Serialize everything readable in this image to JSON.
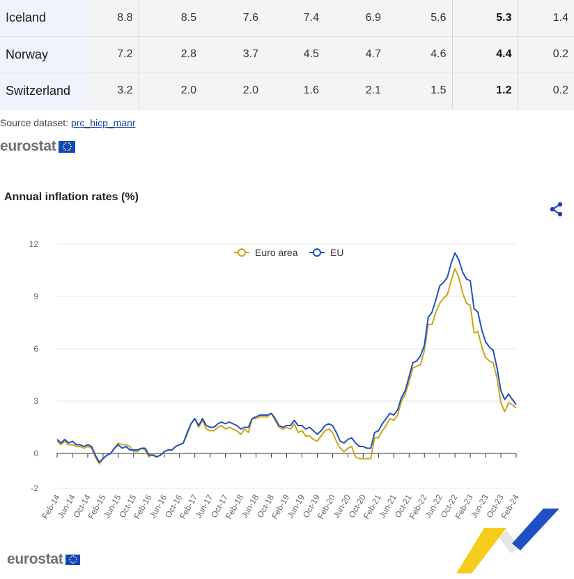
{
  "table": {
    "rows": [
      {
        "country": "Iceland",
        "values": [
          "8.8",
          "8.5",
          "7.6",
          "7.4",
          "6.9",
          "5.6",
          "5.3",
          "1.4"
        ]
      },
      {
        "country": "Norway",
        "values": [
          "7.2",
          "2.8",
          "3.7",
          "4.5",
          "4.7",
          "4.6",
          "4.4",
          "0.2"
        ]
      },
      {
        "country": "Switzerland",
        "values": [
          "3.2",
          "2.0",
          "2.0",
          "1.6",
          "2.1",
          "1.5",
          "1.2",
          "0.2"
        ]
      }
    ]
  },
  "source": {
    "label": "Source dataset:",
    "link_text": "prc_hicp_manr"
  },
  "logo_text": "eurostat",
  "chart_title": "Annual inflation rates (%)",
  "icons": {
    "share": "share-icon",
    "flag": "eu-flag-icon"
  },
  "colors": {
    "euro_area": "#c9a616",
    "eu": "#1f4fc5",
    "flag": "#0e47cb",
    "star": "#ffd617"
  },
  "chart_data": {
    "type": "line",
    "title": "Annual inflation rates (%)",
    "xlabel": "",
    "ylabel": "",
    "ylim": [
      -2,
      12
    ],
    "yticks": [
      12,
      9,
      6,
      3,
      0,
      -2
    ],
    "legend_position": "top-center",
    "grid": true,
    "x": [
      "Feb-14",
      "Mar-14",
      "Apr-14",
      "May-14",
      "Jun-14",
      "Jul-14",
      "Aug-14",
      "Sep-14",
      "Oct-14",
      "Nov-14",
      "Dec-14",
      "Jan-15",
      "Feb-15",
      "Mar-15",
      "Apr-15",
      "May-15",
      "Jun-15",
      "Jul-15",
      "Aug-15",
      "Sep-15",
      "Oct-15",
      "Nov-15",
      "Dec-15",
      "Jan-16",
      "Feb-16",
      "Mar-16",
      "Apr-16",
      "May-16",
      "Jun-16",
      "Jul-16",
      "Aug-16",
      "Sep-16",
      "Oct-16",
      "Nov-16",
      "Dec-16",
      "Jan-17",
      "Feb-17",
      "Mar-17",
      "Apr-17",
      "May-17",
      "Jun-17",
      "Jul-17",
      "Aug-17",
      "Sep-17",
      "Oct-17",
      "Nov-17",
      "Dec-17",
      "Jan-18",
      "Feb-18",
      "Mar-18",
      "Apr-18",
      "May-18",
      "Jun-18",
      "Jul-18",
      "Aug-18",
      "Sep-18",
      "Oct-18",
      "Nov-18",
      "Dec-18",
      "Jan-19",
      "Feb-19",
      "Mar-19",
      "Apr-19",
      "May-19",
      "Jun-19",
      "Jul-19",
      "Aug-19",
      "Sep-19",
      "Oct-19",
      "Nov-19",
      "Dec-19",
      "Jan-20",
      "Feb-20",
      "Mar-20",
      "Apr-20",
      "May-20",
      "Jun-20",
      "Jul-20",
      "Aug-20",
      "Sep-20",
      "Oct-20",
      "Nov-20",
      "Dec-20",
      "Jan-21",
      "Feb-21",
      "Mar-21",
      "Apr-21",
      "May-21",
      "Jun-21",
      "Jul-21",
      "Aug-21",
      "Sep-21",
      "Oct-21",
      "Nov-21",
      "Dec-21",
      "Jan-22",
      "Feb-22",
      "Mar-22",
      "Apr-22",
      "May-22",
      "Jun-22",
      "Jul-22",
      "Aug-22",
      "Sep-22",
      "Oct-22",
      "Nov-22",
      "Dec-22",
      "Jan-23",
      "Feb-23",
      "Mar-23",
      "Apr-23",
      "May-23",
      "Jun-23",
      "Jul-23",
      "Aug-23",
      "Sep-23",
      "Oct-23",
      "Nov-23",
      "Dec-23",
      "Jan-24",
      "Feb-24"
    ],
    "xticks": [
      "Feb-14",
      "Jun-14",
      "Oct-14",
      "Feb-15",
      "Jun-15",
      "Oct-15",
      "Feb-16",
      "Jun-16",
      "Oct-16",
      "Feb-17",
      "Jun-17",
      "Oct-17",
      "Feb-18",
      "Jun-18",
      "Oct-18",
      "Feb-19",
      "Jun-19",
      "Oct-19",
      "Feb-20",
      "Jun-20",
      "Oct-20",
      "Feb-21",
      "Jun-21",
      "Oct-21",
      "Feb-22",
      "Jun-22",
      "Oct-22",
      "Feb-23",
      "Jun-23",
      "Oct-23",
      "Feb-24"
    ],
    "series": [
      {
        "name": "Euro area",
        "color": "#c9a616",
        "values": [
          0.7,
          0.5,
          0.7,
          0.5,
          0.5,
          0.4,
          0.4,
          0.3,
          0.4,
          0.3,
          -0.2,
          -0.6,
          -0.3,
          -0.1,
          0.0,
          0.3,
          0.6,
          0.5,
          0.5,
          0.4,
          0.1,
          0.1,
          0.3,
          0.2,
          -0.2,
          0.0,
          -0.2,
          -0.1,
          0.1,
          0.2,
          0.2,
          0.4,
          0.5,
          0.6,
          1.1,
          1.7,
          2.0,
          1.5,
          1.9,
          1.4,
          1.3,
          1.3,
          1.5,
          1.6,
          1.4,
          1.5,
          1.4,
          1.3,
          1.1,
          1.4,
          1.2,
          2.0,
          2.0,
          2.1,
          2.1,
          2.1,
          2.3,
          1.9,
          1.5,
          1.4,
          1.5,
          1.4,
          1.7,
          1.2,
          1.3,
          1.0,
          1.0,
          0.8,
          0.7,
          1.0,
          1.3,
          1.4,
          1.2,
          0.7,
          0.3,
          0.1,
          0.3,
          0.4,
          -0.2,
          -0.3,
          -0.3,
          -0.3,
          -0.3,
          0.9,
          0.9,
          1.3,
          1.6,
          2.0,
          1.9,
          2.2,
          3.0,
          3.4,
          4.1,
          4.9,
          5.0,
          5.1,
          5.9,
          7.4,
          7.4,
          8.1,
          8.6,
          8.9,
          9.1,
          9.9,
          10.6,
          10.1,
          9.2,
          8.6,
          8.5,
          6.9,
          7.0,
          6.1,
          5.5,
          5.3,
          5.2,
          4.3,
          2.9,
          2.4,
          2.9,
          2.8,
          2.6
        ]
      },
      {
        "name": "EU",
        "color": "#1f4fc5",
        "values": [
          0.8,
          0.6,
          0.8,
          0.6,
          0.7,
          0.5,
          0.5,
          0.4,
          0.5,
          0.4,
          -0.1,
          -0.5,
          -0.3,
          -0.1,
          0.0,
          0.3,
          0.5,
          0.3,
          0.4,
          0.2,
          0.2,
          0.2,
          0.3,
          0.3,
          -0.1,
          -0.1,
          -0.2,
          -0.1,
          0.1,
          0.2,
          0.2,
          0.4,
          0.5,
          0.6,
          1.2,
          1.7,
          2.0,
          1.6,
          2.0,
          1.6,
          1.5,
          1.5,
          1.7,
          1.8,
          1.7,
          1.8,
          1.7,
          1.6,
          1.4,
          1.5,
          1.5,
          2.0,
          2.1,
          2.2,
          2.2,
          2.2,
          2.3,
          2.0,
          1.6,
          1.5,
          1.6,
          1.6,
          1.9,
          1.6,
          1.6,
          1.4,
          1.5,
          1.3,
          1.1,
          1.3,
          1.6,
          1.7,
          1.6,
          1.2,
          0.7,
          0.6,
          0.8,
          0.9,
          0.6,
          0.4,
          0.4,
          0.3,
          0.3,
          1.2,
          1.3,
          1.7,
          2.0,
          2.3,
          2.2,
          2.5,
          3.2,
          3.6,
          4.4,
          5.2,
          5.3,
          5.6,
          6.2,
          7.8,
          8.1,
          8.8,
          9.6,
          9.8,
          10.1,
          10.9,
          11.5,
          11.1,
          10.4,
          10.0,
          9.9,
          8.3,
          8.1,
          7.1,
          6.4,
          6.1,
          5.9,
          4.9,
          3.6,
          3.1,
          3.4,
          3.1,
          2.8
        ]
      }
    ]
  }
}
